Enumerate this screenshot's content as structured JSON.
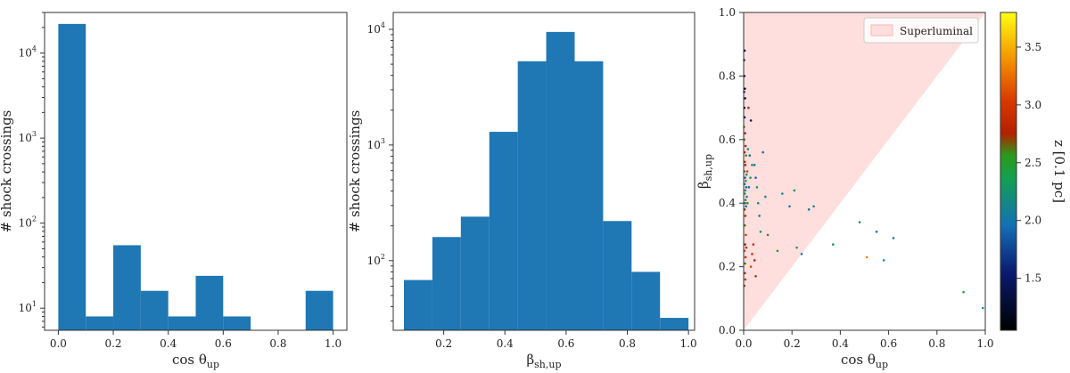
{
  "chart_data": [
    {
      "type": "bar",
      "panel": "histogram-cos-theta",
      "xlabel": "cos θ",
      "xlabel_sub": "up",
      "ylabel": "# shock crossings",
      "y_scale": "log",
      "xlim": [
        -0.05,
        1.05
      ],
      "ylim": [
        5.5,
        30000
      ],
      "color": "#1f77b4",
      "bin_edges": [
        0.0,
        0.1,
        0.2,
        0.3,
        0.4,
        0.5,
        0.6,
        0.7,
        0.8,
        0.9,
        1.0
      ],
      "values": [
        22000,
        8,
        55,
        16,
        8,
        24,
        8,
        0,
        0,
        16
      ],
      "x_ticks": [
        0.0,
        0.2,
        0.4,
        0.6,
        0.8,
        1.0
      ],
      "x_tick_labels": [
        "0.0",
        "0.2",
        "0.4",
        "0.6",
        "0.8",
        "1.0"
      ],
      "y_ticks": [
        10,
        100,
        1000,
        10000
      ],
      "y_tick_bases": [
        "10",
        "10",
        "10",
        "10"
      ],
      "y_tick_exps": [
        "1",
        "2",
        "3",
        "4"
      ]
    },
    {
      "type": "bar",
      "panel": "histogram-beta",
      "xlabel": "β",
      "xlabel_sub": "sh,up",
      "ylabel": "# shock crossings",
      "y_scale": "log",
      "xlim": [
        0.035,
        1.02
      ],
      "ylim": [
        25,
        14000
      ],
      "color": "#1f77b4",
      "bin_edges": [
        0.07,
        0.163,
        0.256,
        0.349,
        0.442,
        0.535,
        0.628,
        0.721,
        0.814,
        0.907,
        1.0
      ],
      "values": [
        68,
        160,
        240,
        1300,
        5300,
        9500,
        5300,
        220,
        80,
        32
      ],
      "x_ticks": [
        0.2,
        0.4,
        0.6,
        0.8,
        1.0
      ],
      "x_tick_labels": [
        "0.2",
        "0.4",
        "0.6",
        "0.8",
        "1.0"
      ],
      "y_ticks": [
        100,
        1000,
        10000
      ],
      "y_tick_bases": [
        "10",
        "10",
        "10"
      ],
      "y_tick_exps": [
        "2",
        "3",
        "4"
      ]
    },
    {
      "type": "scatter",
      "panel": "scatter-cos-beta",
      "xlabel": "cos θ",
      "xlabel_sub": "up",
      "ylabel": "β",
      "ylabel_sub": "sh,up",
      "xlim": [
        0.0,
        1.0
      ],
      "ylim": [
        0.0,
        1.0
      ],
      "x_ticks": [
        0.0,
        0.2,
        0.4,
        0.6,
        0.8,
        1.0
      ],
      "x_tick_labels": [
        "0.0",
        "0.2",
        "0.4",
        "0.6",
        "0.8",
        "1.0"
      ],
      "y_ticks": [
        0.0,
        0.2,
        0.4,
        0.6,
        0.8,
        1.0
      ],
      "y_tick_labels": [
        "0.0",
        "0.2",
        "0.4",
        "0.6",
        "0.8",
        "1.0"
      ],
      "region": {
        "name": "Superluminal",
        "vertices": [
          [
            0.0,
            0.0
          ],
          [
            0.0,
            1.0
          ],
          [
            1.0,
            1.0
          ]
        ],
        "color": "#ffdede"
      },
      "legend": {
        "label": "Superluminal",
        "placement": "upper right"
      },
      "colorbar": {
        "label": "z [0.1 pc]",
        "colormap": "gnuplot2-like",
        "vmin": 1.05,
        "vmax": 3.8,
        "ticks": [
          1.5,
          2.0,
          2.5,
          3.0,
          3.5
        ],
        "tick_labels": [
          "1.5",
          "2.0",
          "2.5",
          "3.0",
          "3.5"
        ]
      },
      "points": [
        {
          "x": 0.004,
          "y": 0.88,
          "z": 1.3
        },
        {
          "x": 0.002,
          "y": 0.85,
          "z": 1.5
        },
        {
          "x": 0.003,
          "y": 0.8,
          "z": 1.4
        },
        {
          "x": 0.005,
          "y": 0.76,
          "z": 1.2
        },
        {
          "x": 0.002,
          "y": 0.75,
          "z": 1.6
        },
        {
          "x": 0.006,
          "y": 0.73,
          "z": 1.4
        },
        {
          "x": 0.003,
          "y": 0.7,
          "z": 1.3
        },
        {
          "x": 0.004,
          "y": 0.67,
          "z": 1.5
        },
        {
          "x": 0.002,
          "y": 0.64,
          "z": 2.6
        },
        {
          "x": 0.006,
          "y": 0.62,
          "z": 2.8
        },
        {
          "x": 0.003,
          "y": 0.6,
          "z": 2.5
        },
        {
          "x": 0.008,
          "y": 0.58,
          "z": 2.7
        },
        {
          "x": 0.004,
          "y": 0.56,
          "z": 2.9
        },
        {
          "x": 0.01,
          "y": 0.55,
          "z": 2.6
        },
        {
          "x": 0.005,
          "y": 0.53,
          "z": 3.0
        },
        {
          "x": 0.007,
          "y": 0.52,
          "z": 2.8
        },
        {
          "x": 0.003,
          "y": 0.5,
          "z": 2.6
        },
        {
          "x": 0.012,
          "y": 0.49,
          "z": 2.2
        },
        {
          "x": 0.006,
          "y": 0.48,
          "z": 2.0
        },
        {
          "x": 0.009,
          "y": 0.47,
          "z": 2.3
        },
        {
          "x": 0.004,
          "y": 0.46,
          "z": 2.1
        },
        {
          "x": 0.011,
          "y": 0.45,
          "z": 1.9
        },
        {
          "x": 0.007,
          "y": 0.44,
          "z": 2.2
        },
        {
          "x": 0.005,
          "y": 0.43,
          "z": 2.4
        },
        {
          "x": 0.013,
          "y": 0.42,
          "z": 2.0
        },
        {
          "x": 0.008,
          "y": 0.41,
          "z": 2.6
        },
        {
          "x": 0.006,
          "y": 0.4,
          "z": 2.1
        },
        {
          "x": 0.01,
          "y": 0.39,
          "z": 1.9
        },
        {
          "x": 0.004,
          "y": 0.38,
          "z": 2.7
        },
        {
          "x": 0.007,
          "y": 0.36,
          "z": 2.9
        },
        {
          "x": 0.005,
          "y": 0.33,
          "z": 2.6
        },
        {
          "x": 0.009,
          "y": 0.3,
          "z": 3.0
        },
        {
          "x": 0.006,
          "y": 0.27,
          "z": 2.8
        },
        {
          "x": 0.011,
          "y": 0.26,
          "z": 2.7
        },
        {
          "x": 0.004,
          "y": 0.25,
          "z": 3.1
        },
        {
          "x": 0.008,
          "y": 0.23,
          "z": 2.9
        },
        {
          "x": 0.006,
          "y": 0.21,
          "z": 2.6
        },
        {
          "x": 0.005,
          "y": 0.18,
          "z": 2.8
        },
        {
          "x": 0.007,
          "y": 0.16,
          "z": 3.0
        },
        {
          "x": 0.003,
          "y": 0.14,
          "z": 2.7
        },
        {
          "x": 0.02,
          "y": 0.7,
          "z": 2.8
        },
        {
          "x": 0.03,
          "y": 0.66,
          "z": 1.5
        },
        {
          "x": 0.018,
          "y": 0.57,
          "z": 2.1
        },
        {
          "x": 0.025,
          "y": 0.55,
          "z": 1.9
        },
        {
          "x": 0.035,
          "y": 0.52,
          "z": 2.2
        },
        {
          "x": 0.015,
          "y": 0.5,
          "z": 3.0
        },
        {
          "x": 0.028,
          "y": 0.48,
          "z": 2.3
        },
        {
          "x": 0.022,
          "y": 0.45,
          "z": 2.0
        },
        {
          "x": 0.016,
          "y": 0.4,
          "z": 2.5
        },
        {
          "x": 0.045,
          "y": 0.52,
          "z": 2.1
        },
        {
          "x": 0.05,
          "y": 0.48,
          "z": 1.9
        },
        {
          "x": 0.055,
          "y": 0.45,
          "z": 2.3
        },
        {
          "x": 0.06,
          "y": 0.4,
          "z": 2.2
        },
        {
          "x": 0.065,
          "y": 0.36,
          "z": 2.0
        },
        {
          "x": 0.07,
          "y": 0.31,
          "z": 2.3
        },
        {
          "x": 0.08,
          "y": 0.56,
          "z": 2.0
        },
        {
          "x": 0.09,
          "y": 0.42,
          "z": 2.1
        },
        {
          "x": 0.04,
          "y": 0.27,
          "z": 2.9
        },
        {
          "x": 0.035,
          "y": 0.24,
          "z": 3.0
        },
        {
          "x": 0.045,
          "y": 0.22,
          "z": 2.8
        },
        {
          "x": 0.05,
          "y": 0.17,
          "z": 2.7
        },
        {
          "x": 0.03,
          "y": 0.2,
          "z": 3.1
        },
        {
          "x": 0.1,
          "y": 0.3,
          "z": 2.6
        },
        {
          "x": 0.14,
          "y": 0.25,
          "z": 2.5
        },
        {
          "x": 0.16,
          "y": 0.43,
          "z": 2.2
        },
        {
          "x": 0.19,
          "y": 0.39,
          "z": 2.0
        },
        {
          "x": 0.21,
          "y": 0.44,
          "z": 2.3
        },
        {
          "x": 0.22,
          "y": 0.26,
          "z": 2.4
        },
        {
          "x": 0.24,
          "y": 0.24,
          "z": 2.1
        },
        {
          "x": 0.27,
          "y": 0.38,
          "z": 2.0
        },
        {
          "x": 0.29,
          "y": 0.39,
          "z": 2.2
        },
        {
          "x": 0.37,
          "y": 0.27,
          "z": 2.3
        },
        {
          "x": 0.48,
          "y": 0.34,
          "z": 2.2
        },
        {
          "x": 0.51,
          "y": 0.23,
          "z": 3.3
        },
        {
          "x": 0.55,
          "y": 0.31,
          "z": 2.1
        },
        {
          "x": 0.58,
          "y": 0.22,
          "z": 2.3
        },
        {
          "x": 0.62,
          "y": 0.29,
          "z": 2.0
        },
        {
          "x": 0.91,
          "y": 0.12,
          "z": 2.4
        },
        {
          "x": 0.99,
          "y": 0.07,
          "z": 2.3
        }
      ]
    }
  ]
}
